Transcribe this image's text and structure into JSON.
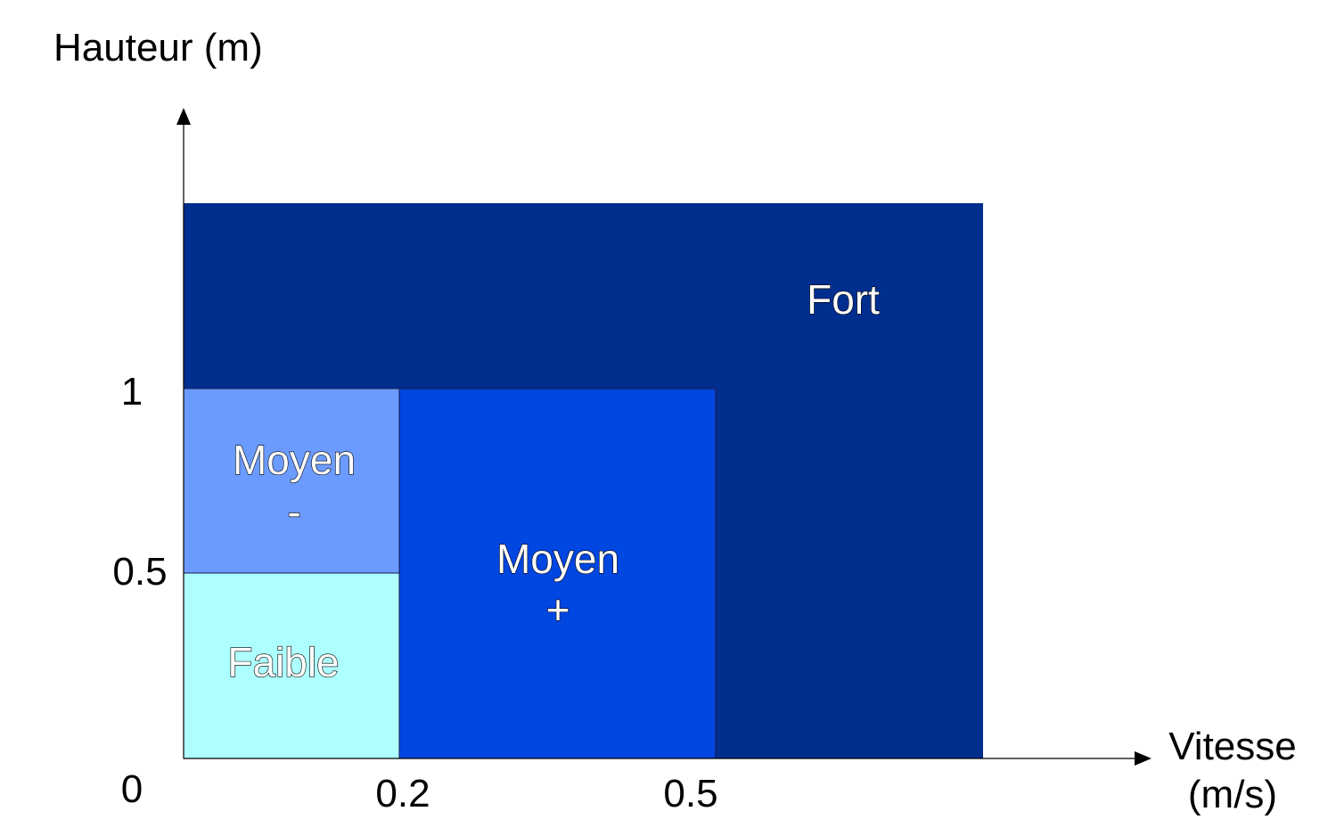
{
  "y_axis": {
    "title": "Hauteur (m)",
    "tick_labels": [
      "0",
      "0.5",
      "1"
    ]
  },
  "x_axis": {
    "title_line1": "Vitesse",
    "title_line2": "(m/s)",
    "tick_labels": [
      "0.2",
      "0.5"
    ]
  },
  "zones": {
    "fort": {
      "label": "Fort",
      "color": "#002E8F"
    },
    "moyen_plus": {
      "label_line1": "Moyen",
      "label_line2": "+",
      "color": "#0046E0"
    },
    "moyen_minus": {
      "label_line1": "Moyen",
      "label_line2": "-",
      "color": "#6B9BFF"
    },
    "faible": {
      "label": "Faible",
      "color": "#AEFFFF"
    }
  }
}
